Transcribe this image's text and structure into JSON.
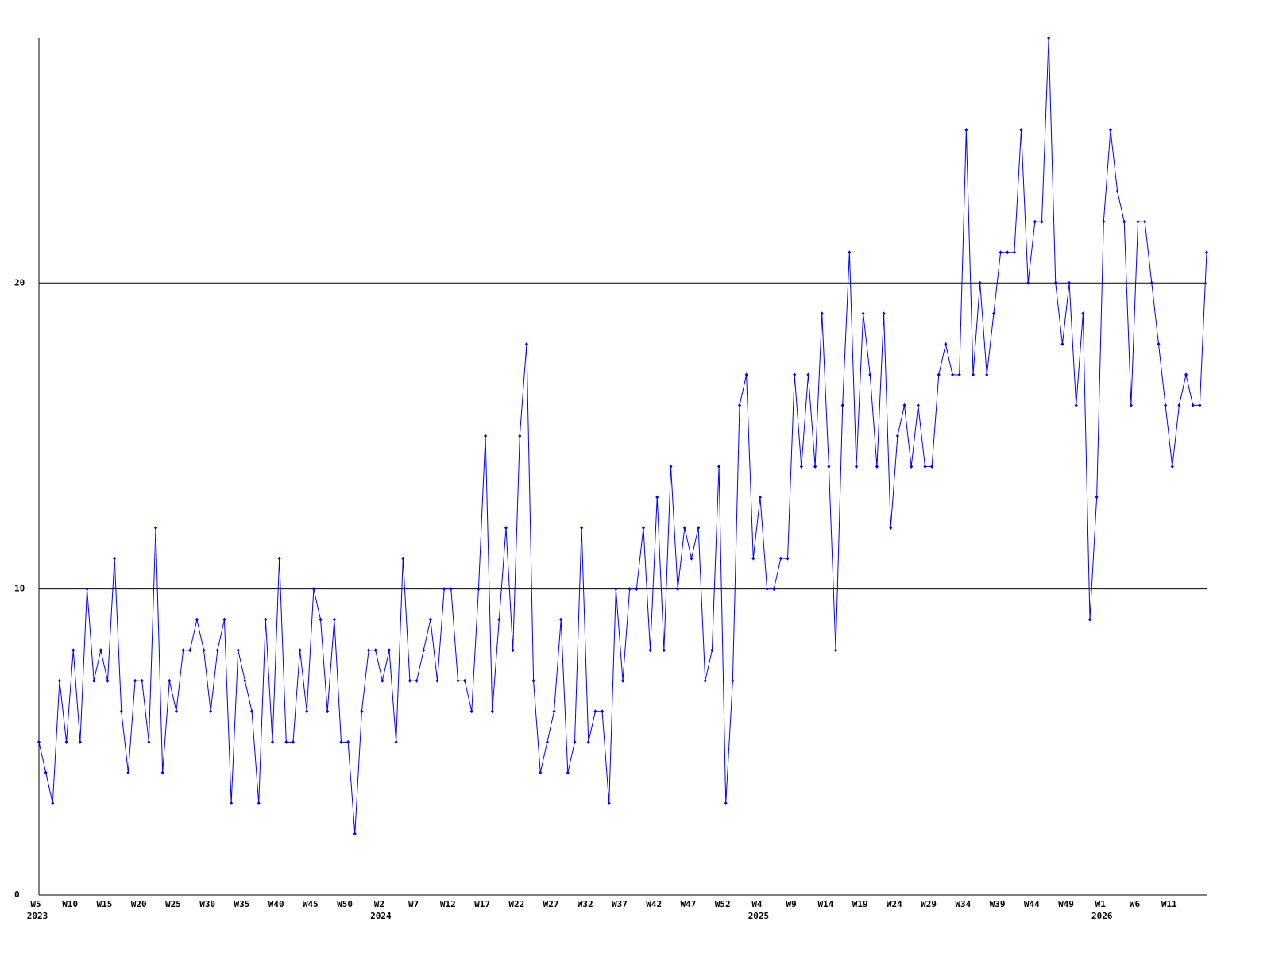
{
  "chart_data": {
    "type": "line",
    "color": "#0000ff",
    "ylim": [
      0,
      28
    ],
    "yticks": [
      0,
      10,
      20
    ],
    "grid": true,
    "categories": [
      "W5",
      null,
      null,
      null,
      null,
      "W10",
      null,
      null,
      null,
      null,
      "W15",
      null,
      null,
      null,
      null,
      "W20",
      null,
      null,
      null,
      null,
      "W25",
      null,
      null,
      null,
      null,
      "W30",
      null,
      null,
      null,
      null,
      "W35",
      null,
      null,
      null,
      null,
      "W40",
      null,
      null,
      null,
      null,
      "W45",
      null,
      null,
      null,
      null,
      "W50",
      null,
      null,
      null,
      null,
      "W2",
      null,
      null,
      null,
      null,
      "W7",
      null,
      null,
      null,
      null,
      "W12",
      null,
      null,
      null,
      null,
      "W17",
      null,
      null,
      null,
      null,
      "W22",
      null,
      null,
      null,
      null,
      "W27",
      null,
      null,
      null,
      null,
      "W32",
      null,
      null,
      null,
      null,
      "W37",
      null,
      null,
      null,
      null,
      "W42",
      null,
      null,
      null,
      null,
      "W47",
      null,
      null,
      null,
      null,
      "W52",
      null,
      null,
      null,
      null,
      "W4",
      null,
      null,
      null,
      null,
      "W9",
      null,
      null,
      null,
      null,
      "W14",
      null,
      null,
      null,
      null,
      "W19",
      null,
      null,
      null,
      null,
      "W24",
      null,
      null,
      null,
      null,
      "W29",
      null,
      null,
      null,
      null,
      "W34",
      null,
      null,
      null,
      null,
      "W39",
      null,
      null,
      null,
      null,
      "W44",
      null,
      null,
      null,
      null,
      "W49",
      null,
      null,
      null,
      null,
      "W1",
      null,
      null,
      null,
      null,
      "W6",
      null,
      null,
      null,
      null,
      "W11",
      null,
      null,
      null,
      null,
      null
    ],
    "category_years": [
      "2023",
      null,
      null,
      null,
      null,
      null,
      null,
      null,
      null,
      null,
      null,
      null,
      null,
      null,
      null,
      null,
      null,
      null,
      null,
      null,
      null,
      null,
      null,
      null,
      null,
      null,
      null,
      null,
      null,
      null,
      null,
      null,
      null,
      null,
      null,
      null,
      null,
      null,
      null,
      null,
      null,
      null,
      null,
      null,
      null,
      null,
      null,
      null,
      null,
      null,
      "2024",
      null,
      null,
      null,
      null,
      null,
      null,
      null,
      null,
      null,
      null,
      null,
      null,
      null,
      null,
      null,
      null,
      null,
      null,
      null,
      null,
      null,
      null,
      null,
      null,
      null,
      null,
      null,
      null,
      null,
      null,
      null,
      null,
      null,
      null,
      null,
      null,
      null,
      null,
      null,
      null,
      null,
      null,
      null,
      null,
      null,
      null,
      null,
      null,
      null,
      null,
      null,
      null,
      null,
      null,
      "2025",
      null,
      null,
      null,
      null,
      null,
      null,
      null,
      null,
      null,
      null,
      null,
      null,
      null,
      null,
      null,
      null,
      null,
      null,
      null,
      null,
      null,
      null,
      null,
      null,
      null,
      null,
      null,
      null,
      null,
      null,
      null,
      null,
      null,
      null,
      null,
      null,
      null,
      null,
      null,
      null,
      null,
      null,
      null,
      null,
      null,
      null,
      null,
      null,
      null,
      "2026",
      null,
      null,
      null,
      null,
      null,
      null,
      null,
      null,
      null,
      null,
      null,
      null,
      null,
      null,
      null
    ],
    "values": [
      5,
      4,
      3,
      7,
      5,
      8,
      5,
      10,
      7,
      8,
      7,
      11,
      6,
      4,
      7,
      7,
      5,
      12,
      4,
      7,
      6,
      8,
      8,
      9,
      8,
      6,
      8,
      9,
      3,
      8,
      7,
      6,
      3,
      9,
      5,
      11,
      5,
      5,
      8,
      6,
      10,
      9,
      6,
      9,
      5,
      5,
      2,
      6,
      8,
      8,
      7,
      8,
      5,
      11,
      7,
      7,
      8,
      9,
      7,
      10,
      10,
      7,
      7,
      6,
      10,
      15,
      6,
      9,
      12,
      8,
      15,
      18,
      7,
      4,
      5,
      6,
      9,
      4,
      5,
      12,
      5,
      6,
      6,
      3,
      10,
      7,
      10,
      10,
      12,
      8,
      13,
      8,
      14,
      10,
      12,
      11,
      12,
      7,
      8,
      14,
      3,
      7,
      16,
      17,
      11,
      13,
      10,
      10,
      11,
      11,
      17,
      14,
      17,
      14,
      19,
      14,
      8,
      16,
      21,
      14,
      19,
      17,
      14,
      19,
      12,
      15,
      16,
      14,
      16,
      14,
      14,
      17,
      18,
      17,
      17,
      25,
      17,
      20,
      17,
      19,
      21,
      21,
      21,
      25,
      20,
      22,
      22,
      28,
      20,
      18,
      20,
      16,
      19,
      9,
      13,
      22,
      25,
      23,
      22,
      16,
      22,
      22,
      20,
      18,
      16,
      14,
      16,
      17,
      16,
      16,
      21
    ]
  }
}
